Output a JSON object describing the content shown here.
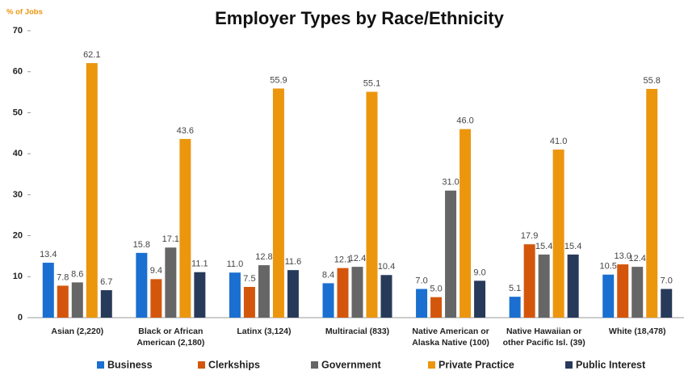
{
  "chart_data": {
    "type": "bar",
    "title": "Employer Types by Race/Ethnicity",
    "y_label": "% of Jobs",
    "categories": [
      [
        "Asian (2,220)"
      ],
      [
        "Black or African",
        "American (2,180)"
      ],
      [
        "Latinx (3,124)"
      ],
      [
        "Multiracial (833)"
      ],
      [
        "Native American or",
        "Alaska Native (100)"
      ],
      [
        "Native Hawaiian or",
        "other Pacific Isl. (39)"
      ],
      [
        "White (18,478)"
      ]
    ],
    "series": [
      {
        "name": "Business",
        "color": "#1a6fd0",
        "values": [
          13.4,
          15.8,
          11.0,
          8.4,
          7.0,
          5.1,
          10.5
        ],
        "value_labels": [
          "13.4",
          "15.8",
          "11.0",
          "8.4",
          "7.0",
          "5.1",
          "10.5"
        ]
      },
      {
        "name": "Clerkships",
        "color": "#d4560c",
        "values": [
          7.8,
          9.4,
          7.5,
          12.1,
          5.0,
          17.9,
          13.0
        ],
        "value_labels": [
          "7.8",
          "9.4",
          "7.5",
          "12.1",
          "5.0",
          "17.9",
          "13.0"
        ]
      },
      {
        "name": "Government",
        "color": "#666666",
        "values": [
          8.6,
          17.1,
          12.8,
          12.4,
          31.0,
          15.4,
          12.4
        ],
        "value_labels": [
          "8.6",
          "17.1",
          "12.8",
          "12.4",
          "31.0",
          "15.4",
          "12.4"
        ]
      },
      {
        "name": "Private Practice",
        "color": "#ec960e",
        "values": [
          62.1,
          43.6,
          55.9,
          55.1,
          46.0,
          41.0,
          55.8
        ],
        "value_labels": [
          "62.1",
          "43.6",
          "55.9",
          "55.1",
          "46.0",
          "41.0",
          "55.8"
        ]
      },
      {
        "name": "Public Interest",
        "color": "#283a5a",
        "values": [
          6.7,
          11.1,
          11.6,
          10.4,
          9.0,
          15.4,
          7.0
        ],
        "value_labels": [
          "6.7",
          "11.1",
          "11.6",
          "10.4",
          "9.0",
          "15.4",
          "7.0"
        ]
      }
    ],
    "ylim": [
      0,
      70
    ],
    "yticks": [
      0,
      10,
      20,
      30,
      40,
      50,
      60,
      70
    ],
    "grid": false,
    "legend": "bottom"
  }
}
